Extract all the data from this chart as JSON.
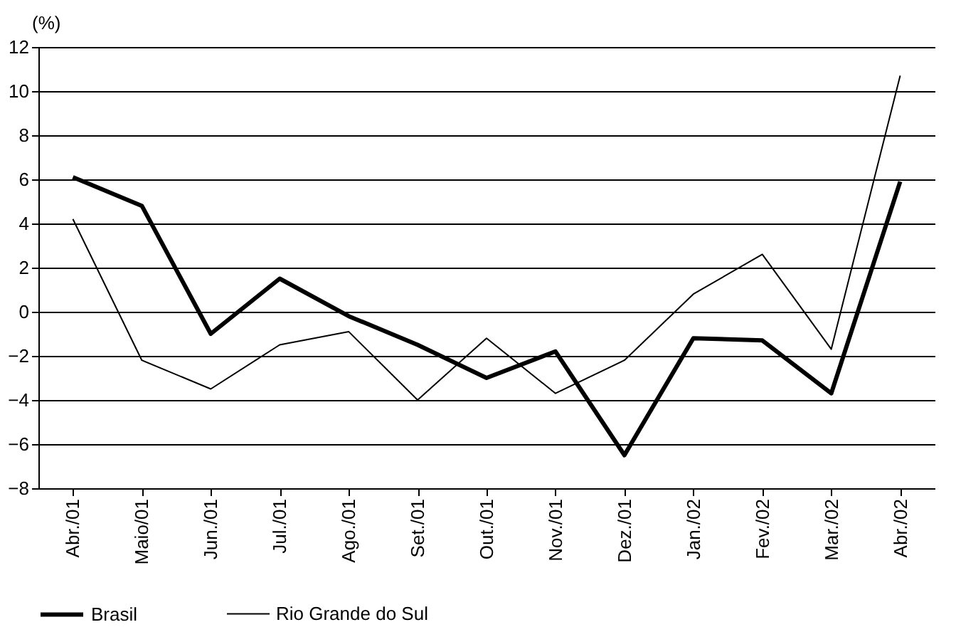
{
  "chart_data": {
    "type": "line",
    "ylabel": "(%)",
    "categories": [
      "Abr./01",
      "Maio/01",
      "Jun./01",
      "Jul./01",
      "Ago./01",
      "Set./01",
      "Out./01",
      "Nov./01",
      "Dez./01",
      "Jan./02",
      "Fev./02",
      "Mar./02",
      "Abr./02"
    ],
    "series": [
      {
        "name": "Brasil",
        "color": "#000000",
        "values": [
          6.1,
          4.8,
          -1.0,
          1.5,
          -0.2,
          -1.5,
          -3.0,
          -1.8,
          -6.5,
          -1.2,
          -1.3,
          -3.7,
          5.9
        ]
      },
      {
        "name": "Rio Grande do Sul",
        "color": "#000000",
        "values": [
          4.2,
          -2.2,
          -3.5,
          -1.5,
          -0.9,
          -4.0,
          -1.2,
          -3.7,
          -2.2,
          0.8,
          2.6,
          -1.7,
          10.7
        ]
      }
    ],
    "ylim": [
      -8,
      12
    ],
    "yticks": [
      -8,
      -6,
      -4,
      -2,
      0,
      2,
      4,
      6,
      8,
      10,
      12
    ],
    "grid": "y",
    "legend": "bottom",
    "marker": "none",
    "line_style": "solid"
  }
}
